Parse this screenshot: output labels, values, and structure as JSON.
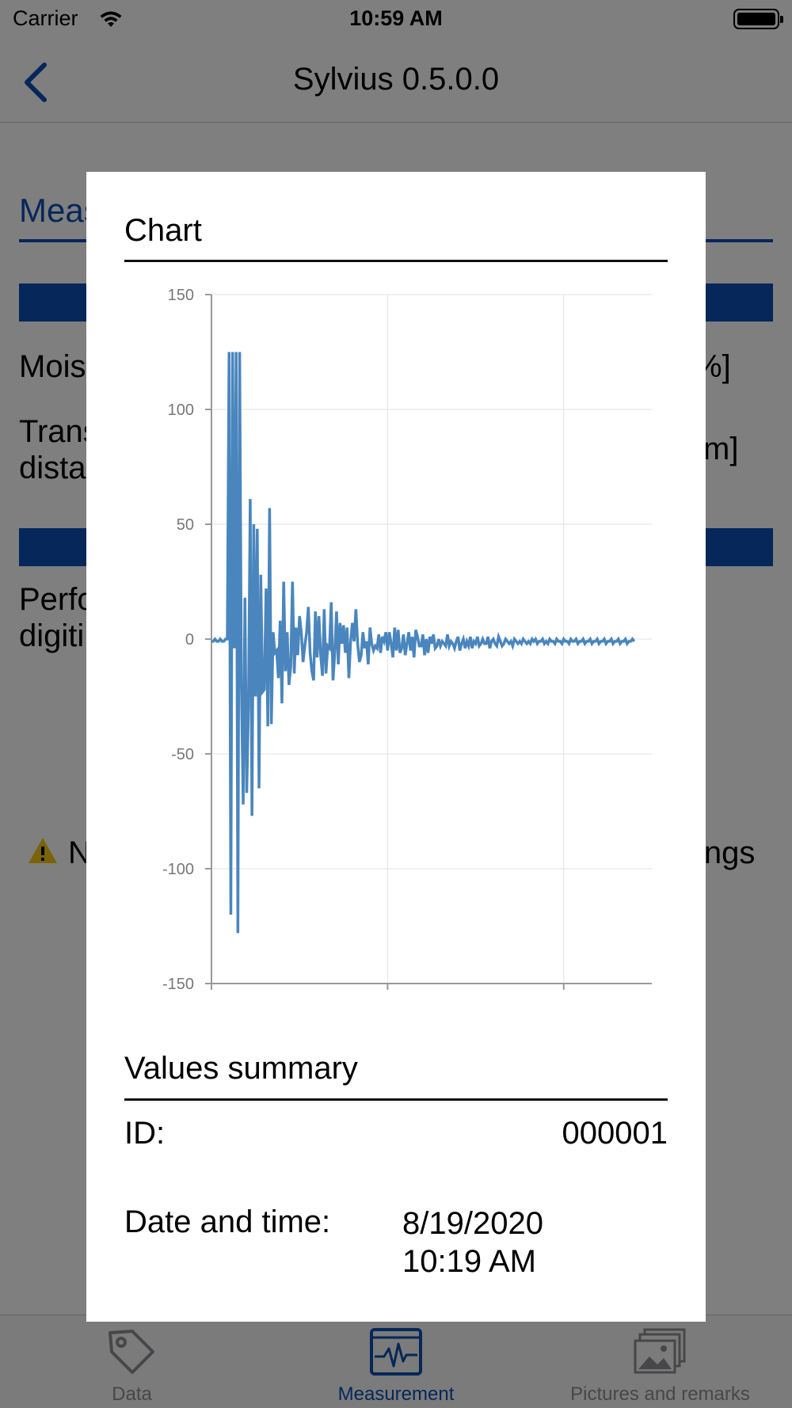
{
  "status_bar": {
    "carrier": "Carrier",
    "time": "10:59 AM"
  },
  "nav": {
    "title": "Sylvius 0.5.0.0"
  },
  "background": {
    "tab_label": "Meas",
    "moisture_left": "Mois",
    "moisture_right": "%]",
    "transmission_left_1": "Trans",
    "transmission_left_2": "dista",
    "transmission_right": "m]",
    "perform_left_1": "Perfo",
    "perform_left_2": "digiti",
    "warning_left": "N",
    "warning_right": "ings"
  },
  "tab_bar": {
    "items": [
      {
        "label": "Data",
        "icon": "tag-icon"
      },
      {
        "label": "Measurement",
        "icon": "waveform-icon"
      },
      {
        "label": "Pictures and remarks",
        "icon": "photos-icon"
      }
    ]
  },
  "modal": {
    "chart_title": "Chart",
    "summary_title": "Values summary",
    "id_label": "ID:",
    "id_value": "000001",
    "datetime_label": "Date and time:",
    "date_value": "8/19/2020",
    "time_value": "10:19 AM"
  },
  "colors": {
    "accent": "#0a4fb5",
    "series": "#4a86bd"
  },
  "chart_data": {
    "type": "line",
    "title": "",
    "xlabel": "",
    "ylabel": "",
    "xlim": [
      0,
      250
    ],
    "ylim": [
      -150,
      150
    ],
    "x_ticks": [
      0,
      100,
      200
    ],
    "y_ticks": [
      -150,
      -100,
      -50,
      0,
      50,
      100,
      150
    ],
    "grid": true,
    "series": [
      {
        "x_start": 0,
        "values": [
          -1,
          -1,
          0,
          -1,
          -1,
          0,
          -1,
          -1,
          0,
          0,
          125,
          -120,
          125,
          -4,
          125,
          -128,
          125,
          -20,
          -72,
          18,
          -67,
          -30,
          61,
          -77,
          50,
          -25,
          48,
          -65,
          28,
          -23,
          -22,
          22,
          -38,
          57,
          -37,
          3,
          -6,
          -5,
          -17,
          8,
          -28,
          25,
          -14,
          3,
          -20,
          -12,
          25,
          -15,
          5,
          -7,
          10,
          3,
          -10,
          -3,
          3,
          14,
          -6,
          -14,
          -18,
          12,
          -8,
          10,
          -7,
          -16,
          13,
          -15,
          -3,
          -4,
          16,
          -18,
          -6,
          12,
          -11,
          7,
          -2,
          6,
          -6,
          5,
          -17,
          -1,
          7,
          -1,
          13,
          -2,
          -10,
          -7,
          3,
          -4,
          -1,
          -11,
          5,
          -2,
          -5,
          -3,
          -4,
          2,
          -6,
          1,
          -1,
          3,
          -5,
          3,
          -2,
          -8,
          5,
          -5,
          4,
          -6,
          -4,
          2,
          -7,
          -2,
          3,
          -5,
          1,
          -8,
          4,
          1,
          -3,
          -3,
          2,
          -7,
          0,
          -6,
          1,
          -2,
          2,
          -4,
          -3,
          0,
          -3,
          -1,
          -2,
          -3,
          2,
          -3,
          -1,
          -2,
          -4,
          -1,
          1,
          -5,
          -2,
          0,
          -4,
          -1,
          -3,
          1,
          -4,
          -1,
          -2,
          1,
          -3,
          -2,
          0,
          -2,
          -2,
          1,
          -4,
          -1,
          0,
          -2,
          -3,
          1,
          -1,
          -3,
          -2,
          0,
          -1,
          -2,
          -1,
          -3,
          0,
          -1,
          -2,
          -1,
          -2,
          0,
          -1,
          -2,
          -1,
          -2,
          0,
          -1,
          0,
          -2,
          -1,
          -1,
          0,
          -2,
          -1,
          -2,
          0,
          -1,
          -1,
          -2,
          0,
          -1,
          -1,
          -2,
          0,
          -1,
          -1,
          -2,
          0,
          -1,
          -1,
          0,
          -2,
          -1,
          -1,
          0,
          -2,
          -1,
          -1,
          0,
          -2,
          -1,
          -1,
          0,
          -2,
          -1,
          -1,
          0,
          -2,
          -1,
          -1,
          0,
          -2,
          -1,
          -1,
          0,
          -2,
          -1,
          -1,
          0,
          -2,
          -1,
          -1,
          0,
          -1
        ]
      }
    ]
  }
}
